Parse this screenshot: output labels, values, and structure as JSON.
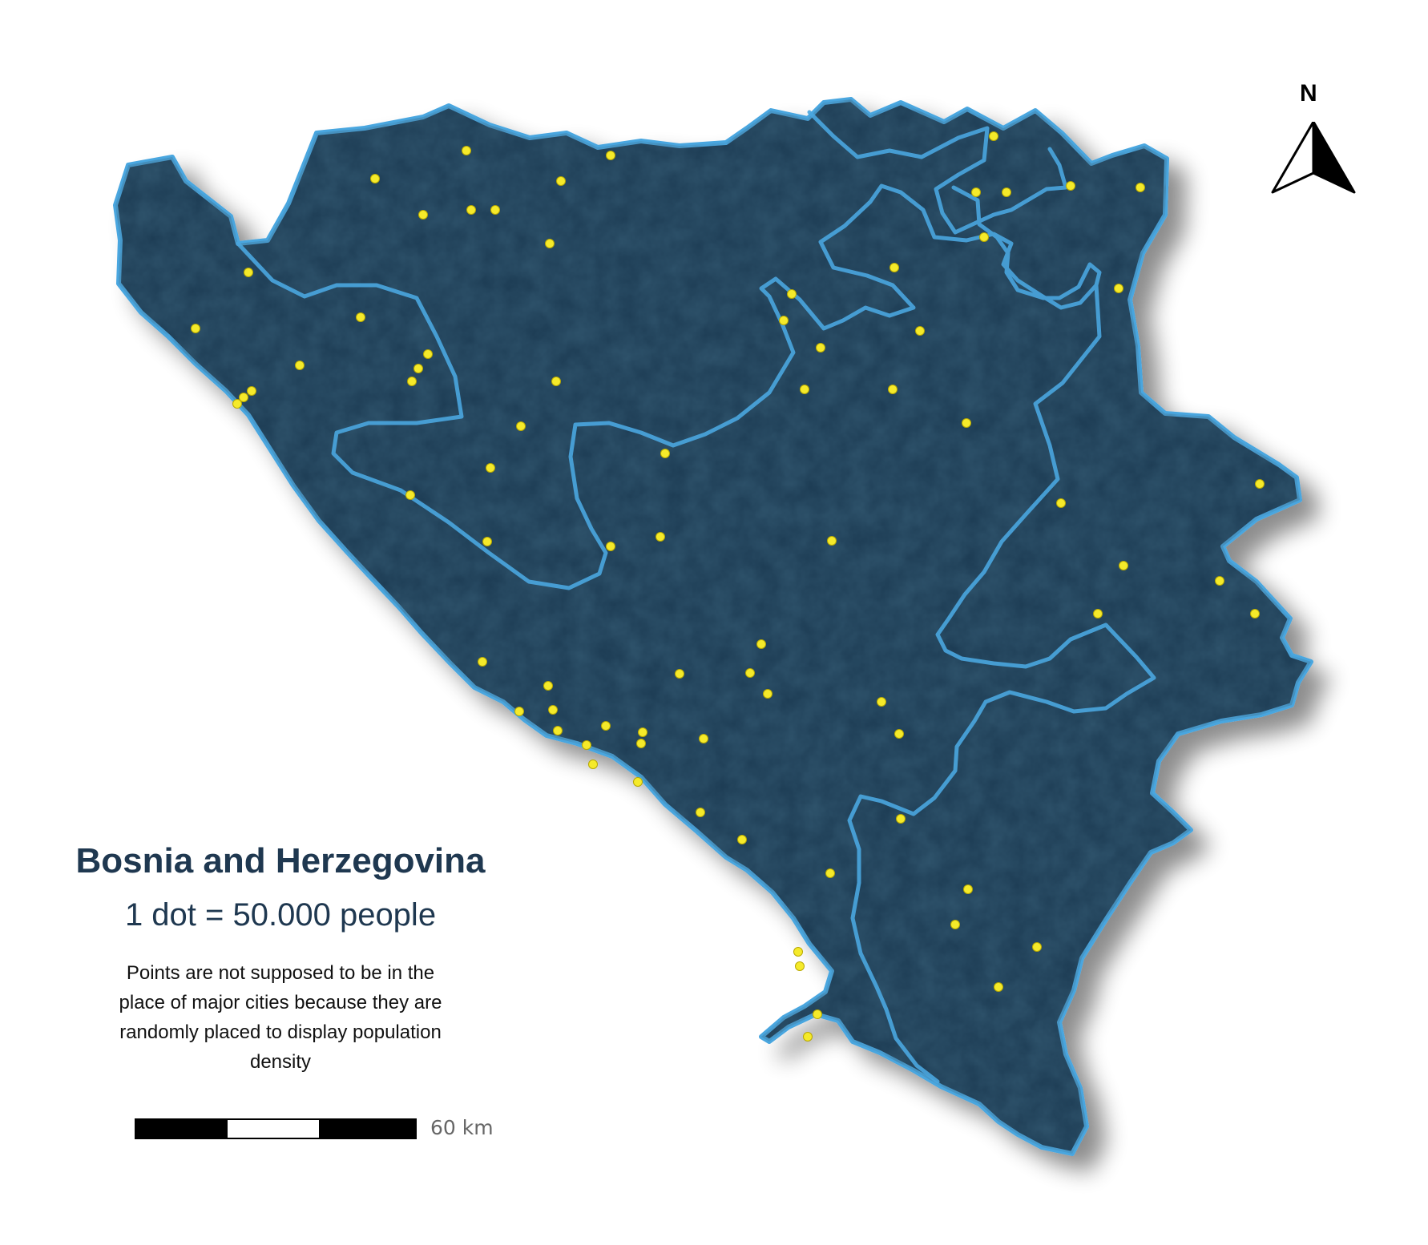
{
  "title": "Bosnia and Herzegovina",
  "subtitle": "1 dot = 50.000 people",
  "note": "Points are not supposed to be in the place of major cities because they are randomly placed to display population density",
  "scale_bar": {
    "label": "60 km"
  },
  "north_arrow": {
    "label": "N"
  },
  "colors": {
    "land": "#1f3a52",
    "border": "#4aa6df",
    "dot": "#f5ea2a",
    "title": "#1f3850"
  }
}
